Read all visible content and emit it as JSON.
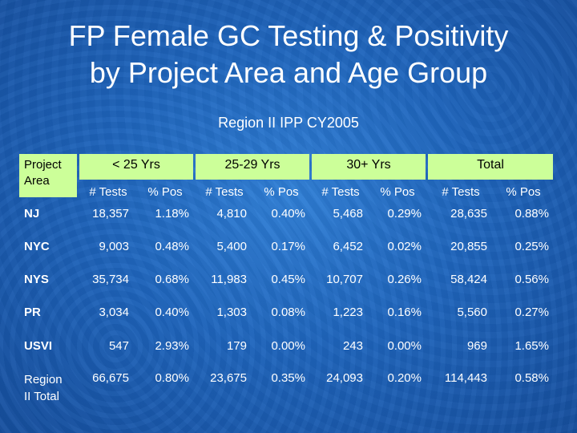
{
  "title_line1": "FP Female GC Testing & Positivity",
  "title_line2": "by Project Area and Age Group",
  "subtitle": "Region II IPP CY2005",
  "header": {
    "project_area_line1": "Project",
    "project_area_line2": "Area",
    "groups": [
      "< 25 Yrs",
      "25-29 Yrs",
      "30+ Yrs",
      "Total"
    ],
    "tests_label": "# Tests",
    "pos_label": "% Pos"
  },
  "rows": [
    {
      "label": "NJ",
      "values": [
        "18,357",
        "1.18%",
        "4,810",
        "0.40%",
        "5,468",
        "0.29%",
        "28,635",
        "0.88%"
      ]
    },
    {
      "label": "NYC",
      "values": [
        "9,003",
        "0.48%",
        "5,400",
        "0.17%",
        "6,452",
        "0.02%",
        "20,855",
        "0.25%"
      ]
    },
    {
      "label": "NYS",
      "values": [
        "35,734",
        "0.68%",
        "11,983",
        "0.45%",
        "10,707",
        "0.26%",
        "58,424",
        "0.56%"
      ]
    },
    {
      "label": "PR",
      "values": [
        "3,034",
        "0.40%",
        "1,303",
        "0.08%",
        "1,223",
        "0.16%",
        "5,560",
        "0.27%"
      ]
    },
    {
      "label": "USVI",
      "values": [
        "547",
        "2.93%",
        "179",
        "0.00%",
        "243",
        "0.00%",
        "969",
        "1.65%"
      ]
    },
    {
      "label_line1": "Region",
      "label_line2": "II Total",
      "values": [
        "66,675",
        "0.80%",
        "23,675",
        "0.35%",
        "24,093",
        "0.20%",
        "114,443",
        "0.58%"
      ]
    }
  ]
}
